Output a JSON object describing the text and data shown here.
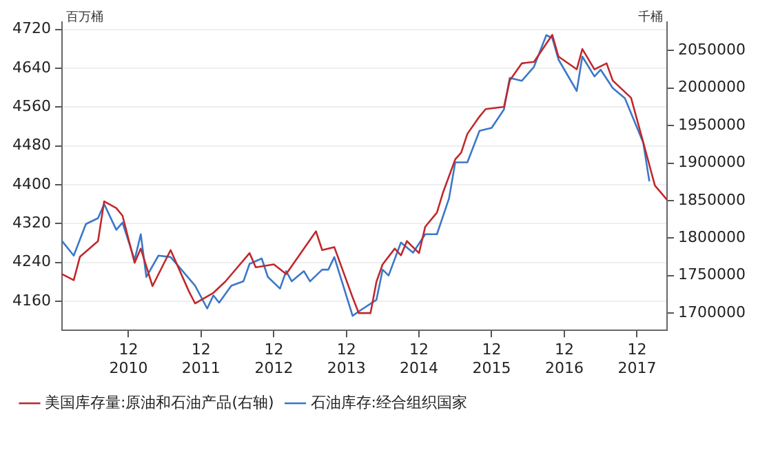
{
  "chart_data": {
    "type": "line",
    "ylabel": "百万桶",
    "y2label": "千桶",
    "xlim": [
      "2010-01",
      "2018-05"
    ],
    "xticks": [
      {
        "value": "2010-12",
        "label": "12\n2010"
      },
      {
        "value": "2011-12",
        "label": "12\n2011"
      },
      {
        "value": "2012-12",
        "label": "12\n2012"
      },
      {
        "value": "2013-12",
        "label": "12\n2013"
      },
      {
        "value": "2014-12",
        "label": "12\n2014"
      },
      {
        "value": "2015-12",
        "label": "12\n2015"
      },
      {
        "value": "2016-12",
        "label": "12\n2016"
      },
      {
        "value": "2017-12",
        "label": "12\n2017"
      }
    ],
    "ylim": [
      4100,
      4735
    ],
    "yticks": [
      4160,
      4240,
      4320,
      4400,
      4480,
      4560,
      4640,
      4720
    ],
    "y2lim": [
      1677000,
      2088000
    ],
    "y2ticks": [
      1700000,
      1750000,
      1800000,
      1850000,
      1900000,
      1950000,
      2000000,
      2050000
    ],
    "grid": "y",
    "legend": "bottom",
    "series": [
      {
        "name": "美国库存量:原油和石油产品(右轴)",
        "color": "#c0282c",
        "axis": "y2",
        "x": [
          "2010-01",
          "2010-03",
          "2010-04",
          "2010-07",
          "2010-08",
          "2010-10",
          "2010-11",
          "2011-01",
          "2011-02",
          "2011-04",
          "2011-07",
          "2011-10",
          "2011-11",
          "2012-02",
          "2012-04",
          "2012-08",
          "2012-09",
          "2012-12",
          "2013-02",
          "2013-07",
          "2013-08",
          "2013-10",
          "2014-01",
          "2014-02",
          "2014-04",
          "2014-05",
          "2014-06",
          "2014-08",
          "2014-09",
          "2014-10",
          "2014-12",
          "2015-01",
          "2015-03",
          "2015-04",
          "2015-06",
          "2015-07",
          "2015-08",
          "2015-10",
          "2015-11",
          "2016-02",
          "2016-03",
          "2016-05",
          "2016-07",
          "2016-10",
          "2016-11",
          "2017-02",
          "2017-03",
          "2017-05",
          "2017-07",
          "2017-08",
          "2017-11",
          "2018-01",
          "2018-03",
          "2018-05"
        ],
        "values": [
          1752000,
          1744000,
          1775000,
          1796000,
          1849000,
          1840000,
          1830000,
          1767000,
          1786000,
          1736000,
          1784000,
          1729000,
          1713000,
          1727000,
          1742000,
          1780000,
          1761000,
          1765000,
          1752000,
          1809000,
          1784000,
          1788000,
          1721000,
          1700000,
          1700000,
          1742000,
          1765000,
          1786000,
          1777000,
          1796000,
          1780000,
          1815000,
          1834000,
          1861000,
          1905000,
          1914000,
          1939000,
          1962000,
          1972000,
          1975000,
          2010000,
          2033000,
          2035000,
          2071000,
          2042000,
          2025000,
          2052000,
          2025000,
          2033000,
          2010000,
          1987000,
          1928000,
          1870000,
          1851000
        ]
      },
      {
        "name": "石油库存:经合组织国家",
        "color": "#3a78c8",
        "x": [
          "2010-01",
          "2010-03",
          "2010-05",
          "2010-07",
          "2010-08",
          "2010-10",
          "2010-11",
          "2011-01",
          "2011-02",
          "2011-03",
          "2011-05",
          "2011-07",
          "2011-11",
          "2012-01",
          "2012-02",
          "2012-03",
          "2012-05",
          "2012-07",
          "2012-08",
          "2012-10",
          "2012-11",
          "2013-01",
          "2013-02",
          "2013-03",
          "2013-05",
          "2013-06",
          "2013-08",
          "2013-09",
          "2013-10",
          "2014-01",
          "2014-02",
          "2014-05",
          "2014-06",
          "2014-07",
          "2014-09",
          "2014-11",
          "2015-01",
          "2015-03",
          "2015-05",
          "2015-06",
          "2015-08",
          "2015-10",
          "2015-12",
          "2016-02",
          "2016-03",
          "2016-05",
          "2016-07",
          "2016-09",
          "2016-10",
          "2016-11",
          "2017-02",
          "2017-03",
          "2017-05",
          "2017-06",
          "2017-08",
          "2017-10",
          "2018-01",
          "2018-02"
        ],
        "values": [
          4284,
          4254,
          4319,
          4331,
          4360,
          4307,
          4322,
          4245,
          4298,
          4210,
          4254,
          4251,
          4192,
          4145,
          4172,
          4157,
          4192,
          4201,
          4237,
          4248,
          4210,
          4186,
          4222,
          4201,
          4222,
          4201,
          4225,
          4225,
          4251,
          4130,
          4139,
          4163,
          4225,
          4213,
          4281,
          4260,
          4298,
          4298,
          4372,
          4446,
          4446,
          4511,
          4517,
          4555,
          4620,
          4614,
          4643,
          4708,
          4702,
          4658,
          4593,
          4664,
          4623,
          4637,
          4599,
          4578,
          4487,
          4407
        ]
      }
    ]
  }
}
